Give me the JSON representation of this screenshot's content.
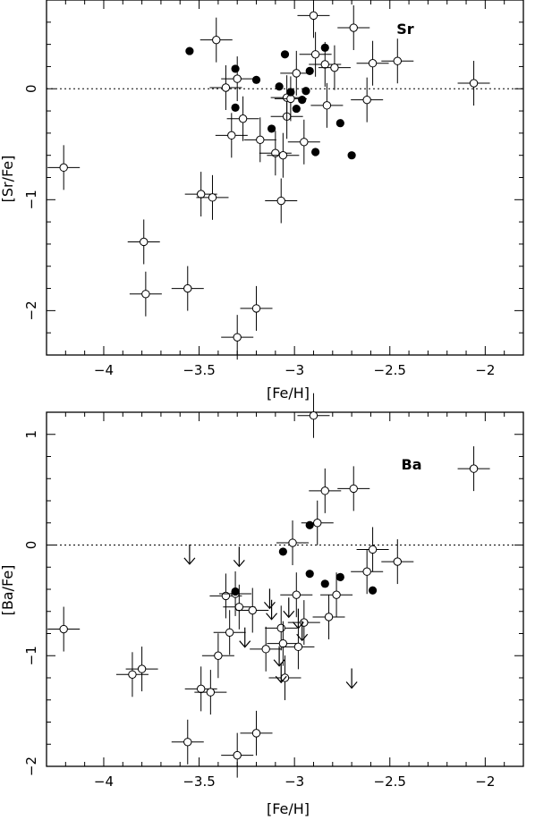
{
  "chart_data": [
    {
      "type": "scatter",
      "title": "",
      "panel_label": "Sr",
      "xlabel": "[Fe/H]",
      "ylabel": "[Sr/Fe]",
      "xlim": [
        -4.3,
        -1.8
      ],
      "ylim": [
        -2.4,
        0.8
      ],
      "x_ticks": [
        -4,
        -3.5,
        -3,
        -2.5,
        -2
      ],
      "x_tick_labels": [
        "−4",
        "−3.5",
        "−3",
        "−2.5",
        "−2"
      ],
      "y_ticks": [
        -2,
        -1,
        0
      ],
      "y_tick_labels": [
        "−2",
        "−1",
        "0"
      ],
      "reference_line_y": 0,
      "grid": false,
      "series": [
        {
          "marker": "open-circle-errorbars",
          "x": [
            -4.21,
            -3.79,
            -3.78,
            -3.56,
            -3.49,
            -3.43,
            -3.41,
            -3.36,
            -3.33,
            -3.3,
            -3.27,
            -3.2,
            -3.18,
            -3.1,
            -3.07,
            -3.06,
            -3.04,
            -3.04,
            -3.02,
            -2.99,
            -2.95,
            -2.9,
            -2.89,
            -2.84,
            -2.83,
            -2.79,
            -2.69,
            -2.62,
            -2.59,
            -2.46,
            -2.06,
            -3.3
          ],
          "y": [
            -0.71,
            -1.38,
            -1.85,
            -1.8,
            -0.95,
            -0.98,
            0.44,
            0.01,
            -0.42,
            0.09,
            -0.27,
            -1.98,
            -0.46,
            -0.58,
            -1.01,
            -0.6,
            -0.25,
            -0.08,
            -0.09,
            0.14,
            -0.48,
            0.66,
            0.31,
            0.22,
            -0.15,
            0.19,
            0.55,
            -0.1,
            0.23,
            0.25,
            0.05,
            -2.24
          ],
          "x_err": 0.12,
          "y_err": 0.18
        },
        {
          "marker": "filled-circle",
          "x": [
            -3.55,
            -3.31,
            -3.31,
            -3.2,
            -3.12,
            -3.08,
            -3.05,
            -3.02,
            -2.99,
            -2.96,
            -2.94,
            -2.92,
            -2.89,
            -2.84,
            -2.76,
            -2.7
          ],
          "y": [
            0.34,
            0.18,
            -0.17,
            0.08,
            -0.36,
            0.02,
            0.31,
            -0.03,
            -0.18,
            -0.1,
            -0.02,
            0.16,
            -0.57,
            0.37,
            -0.31,
            -0.6
          ]
        }
      ]
    },
    {
      "type": "scatter",
      "title": "",
      "panel_label": "Ba",
      "xlabel": "[Fe/H]",
      "ylabel": "[Ba/Fe]",
      "xlim": [
        -4.3,
        -1.8
      ],
      "ylim": [
        -2.0,
        1.2
      ],
      "x_ticks": [
        -4,
        -3.5,
        -3,
        -2.5,
        -2
      ],
      "x_tick_labels": [
        "−4",
        "−3.5",
        "−3",
        "−2.5",
        "−2"
      ],
      "y_ticks": [
        -2,
        -1,
        0,
        1
      ],
      "y_tick_labels": [
        "−2",
        "−1",
        "0",
        "1"
      ],
      "reference_line_y": 0,
      "grid": false,
      "series": [
        {
          "marker": "open-circle-errorbars",
          "x": [
            -4.21,
            -3.85,
            -3.8,
            -3.56,
            -3.49,
            -3.44,
            -3.4,
            -3.36,
            -3.34,
            -3.31,
            -3.29,
            -3.22,
            -3.2,
            -3.15,
            -3.07,
            -3.06,
            -3.05,
            -3.01,
            -2.99,
            -2.98,
            -2.95,
            -2.88,
            -2.84,
            -2.82,
            -2.78,
            -2.69,
            -2.62,
            -2.59,
            -2.46,
            -2.06,
            -2.9,
            -3.3
          ],
          "y": [
            -0.76,
            -1.17,
            -1.12,
            -1.78,
            -1.3,
            -1.33,
            -1.0,
            -0.46,
            -0.79,
            -0.44,
            -0.56,
            -0.59,
            -1.7,
            -0.94,
            -0.75,
            -0.89,
            -1.2,
            0.02,
            -0.45,
            -0.92,
            -0.7,
            0.2,
            0.49,
            -0.65,
            -0.45,
            0.51,
            -0.24,
            -0.04,
            -0.15,
            0.69,
            1.17,
            -1.9
          ],
          "x_err": 0.12,
          "y_err": 0.18
        },
        {
          "marker": "filled-circle",
          "x": [
            -3.31,
            -3.06,
            -2.92,
            -2.92,
            -2.84,
            -2.76,
            -2.59
          ],
          "y": [
            -0.42,
            -0.06,
            0.18,
            -0.26,
            -0.35,
            -0.29,
            -0.41
          ]
        },
        {
          "marker": "upper-limit-arrow",
          "x": [
            -3.55,
            -3.29,
            -3.26,
            -3.13,
            -3.12,
            -3.08,
            -3.07,
            -3.03,
            -2.98,
            -2.96,
            -2.7
          ],
          "y": [
            -0.1,
            -0.12,
            -0.85,
            -0.5,
            -0.6,
            -1.02,
            -1.17,
            -0.58,
            -0.68,
            -0.79,
            -1.22
          ]
        }
      ]
    }
  ]
}
